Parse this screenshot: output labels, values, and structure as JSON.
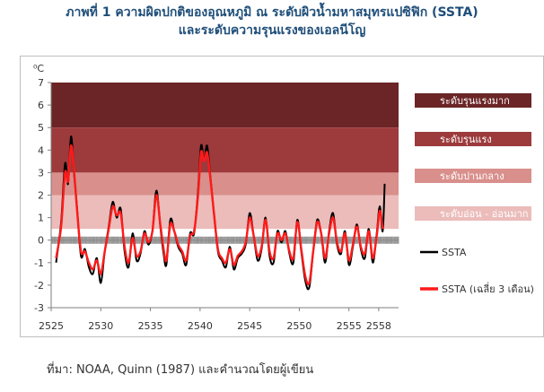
{
  "title_line1": "ภาพที่ 1 ความผิดปกติของอุณหภูมิ ณ ระดับผิวน้ำมหาสมุทรแปซิฟิก (SSTA)",
  "title_line2": "และระดับความรุนแรงของเอลนีโญ",
  "source": "ที่มา: NOAA, Quinn (1987) และคำนวณโดยผู้เขียน",
  "colors": {
    "very_strong": "#6b2526",
    "strong": "#9c3a3c",
    "moderate": "#d98f8b",
    "weak": "#ebbcba",
    "ssta": "#000000",
    "ssta_ma": "#ff1a1a"
  },
  "chart_data": {
    "type": "line",
    "unit_label": "⁰C",
    "ylim": [
      -3,
      7
    ],
    "y_ticks": [
      "-3",
      "-2",
      "-1",
      "0",
      "1",
      "2",
      "3",
      "4",
      "5",
      "6",
      "7"
    ],
    "xlim": [
      2525,
      2560
    ],
    "x_ticks": [
      "2525",
      "2530",
      "2535",
      "2540",
      "2545",
      "2550",
      "2555",
      "2558"
    ],
    "x_tick_values": [
      2525,
      2530,
      2535,
      2540,
      2545,
      2550,
      2555,
      2558
    ],
    "bands": [
      {
        "name": "ระดับรุนแรงมาก",
        "from": 5,
        "to": 7,
        "color": "#6b2526"
      },
      {
        "name": "ระดับรุนแรง",
        "from": 3,
        "to": 5,
        "color": "#9c3a3c"
      },
      {
        "name": "ระดับปานกลาง",
        "from": 2,
        "to": 3,
        "color": "#d98f8b"
      },
      {
        "name": "ระดับอ่อน - อ่อนมาก",
        "from": 0.5,
        "to": 2,
        "color": "#ebbcba"
      }
    ],
    "series": [
      {
        "name": "SSTA",
        "color": "#000000",
        "x": [
          2525.5,
          2526.0,
          2526.4,
          2526.7,
          2527.0,
          2527.3,
          2527.6,
          2528.0,
          2528.4,
          2528.8,
          2529.2,
          2529.6,
          2530.0,
          2530.4,
          2530.8,
          2531.2,
          2531.6,
          2532.0,
          2532.4,
          2532.8,
          2533.2,
          2533.6,
          2534.0,
          2534.4,
          2534.8,
          2535.2,
          2535.6,
          2536.0,
          2536.3,
          2536.6,
          2537.0,
          2537.4,
          2537.8,
          2538.2,
          2538.6,
          2539.0,
          2539.4,
          2539.8,
          2540.1,
          2540.4,
          2540.7,
          2541.0,
          2541.4,
          2541.8,
          2542.2,
          2542.6,
          2543.0,
          2543.4,
          2543.8,
          2544.2,
          2544.6,
          2545.0,
          2545.4,
          2545.8,
          2546.2,
          2546.6,
          2547.0,
          2547.4,
          2547.8,
          2548.2,
          2548.6,
          2549.0,
          2549.4,
          2549.8,
          2550.2,
          2550.6,
          2551.0,
          2551.4,
          2551.8,
          2552.2,
          2552.6,
          2553.0,
          2553.4,
          2553.8,
          2554.2,
          2554.6,
          2555.0,
          2555.4,
          2555.8,
          2556.2,
          2556.6,
          2557.0,
          2557.4,
          2557.8,
          2558.1,
          2558.4,
          2558.6
        ],
        "values": [
          -1.0,
          0.8,
          3.4,
          2.5,
          4.6,
          3.0,
          1.5,
          -0.7,
          -0.4,
          -1.2,
          -1.5,
          -0.8,
          -1.9,
          -0.5,
          0.6,
          1.7,
          1.0,
          1.4,
          -0.5,
          -1.2,
          0.3,
          -0.9,
          -0.6,
          0.4,
          -0.2,
          0.4,
          2.2,
          0.6,
          -0.5,
          -1.1,
          0.9,
          0.4,
          -0.3,
          -0.6,
          -1.1,
          0.3,
          0.3,
          2.2,
          4.2,
          3.5,
          4.2,
          3.0,
          1.2,
          -0.5,
          -0.9,
          -1.2,
          -0.3,
          -1.3,
          -0.8,
          -0.6,
          -0.2,
          1.2,
          0.2,
          -0.9,
          -0.4,
          1.0,
          -0.7,
          -1.0,
          0.4,
          -0.1,
          0.4,
          -0.6,
          -1.0,
          0.9,
          -0.5,
          -1.8,
          -2.1,
          -0.5,
          0.9,
          0.3,
          -1.0,
          0.4,
          1.2,
          -0.2,
          -0.6,
          0.4,
          -1.1,
          -0.3,
          0.7,
          -0.4,
          -0.8,
          0.5,
          -1.0,
          0.3,
          1.5,
          0.4,
          2.5
        ]
      },
      {
        "name": "SSTA (เฉลี่ย 3 เดือน)",
        "color": "#ff1a1a",
        "x": [
          2525.5,
          2526.0,
          2526.4,
          2526.7,
          2527.0,
          2527.3,
          2527.6,
          2528.0,
          2528.4,
          2528.8,
          2529.2,
          2529.6,
          2530.0,
          2530.4,
          2530.8,
          2531.2,
          2531.6,
          2532.0,
          2532.4,
          2532.8,
          2533.2,
          2533.6,
          2534.0,
          2534.4,
          2534.8,
          2535.2,
          2535.6,
          2536.0,
          2536.3,
          2536.6,
          2537.0,
          2537.4,
          2537.8,
          2538.2,
          2538.6,
          2539.0,
          2539.4,
          2539.8,
          2540.1,
          2540.4,
          2540.7,
          2541.0,
          2541.4,
          2541.8,
          2542.2,
          2542.6,
          2543.0,
          2543.4,
          2543.8,
          2544.2,
          2544.6,
          2545.0,
          2545.4,
          2545.8,
          2546.2,
          2546.6,
          2547.0,
          2547.4,
          2547.8,
          2548.2,
          2548.6,
          2549.0,
          2549.4,
          2549.8,
          2550.2,
          2550.6,
          2551.0,
          2551.4,
          2551.8,
          2552.2,
          2552.6,
          2553.0,
          2553.4,
          2553.8,
          2554.2,
          2554.6,
          2555.0,
          2555.4,
          2555.8,
          2556.2,
          2556.6,
          2557.0,
          2557.4,
          2557.8,
          2558.1,
          2558.4
        ],
        "values": [
          -0.8,
          0.6,
          3.0,
          2.6,
          4.2,
          3.1,
          1.4,
          -0.5,
          -0.5,
          -1.0,
          -1.3,
          -0.9,
          -1.5,
          -0.5,
          0.5,
          1.5,
          1.1,
          1.2,
          -0.3,
          -1.0,
          0.1,
          -0.7,
          -0.5,
          0.3,
          -0.1,
          0.4,
          2.0,
          0.7,
          -0.3,
          -0.9,
          0.7,
          0.4,
          -0.2,
          -0.5,
          -0.9,
          0.2,
          0.4,
          2.0,
          3.9,
          3.5,
          3.9,
          2.9,
          1.2,
          -0.4,
          -0.8,
          -1.0,
          -0.4,
          -1.1,
          -0.7,
          -0.5,
          -0.1,
          1.0,
          0.2,
          -0.7,
          -0.3,
          0.9,
          -0.5,
          -0.8,
          0.3,
          0.0,
          0.3,
          -0.5,
          -0.8,
          0.8,
          -0.4,
          -1.6,
          -1.9,
          -0.5,
          0.8,
          0.3,
          -0.8,
          0.3,
          1.0,
          -0.1,
          -0.5,
          0.3,
          -0.9,
          -0.2,
          0.6,
          -0.3,
          -0.6,
          0.4,
          -0.8,
          0.2,
          1.3,
          0.5
        ]
      }
    ]
  }
}
